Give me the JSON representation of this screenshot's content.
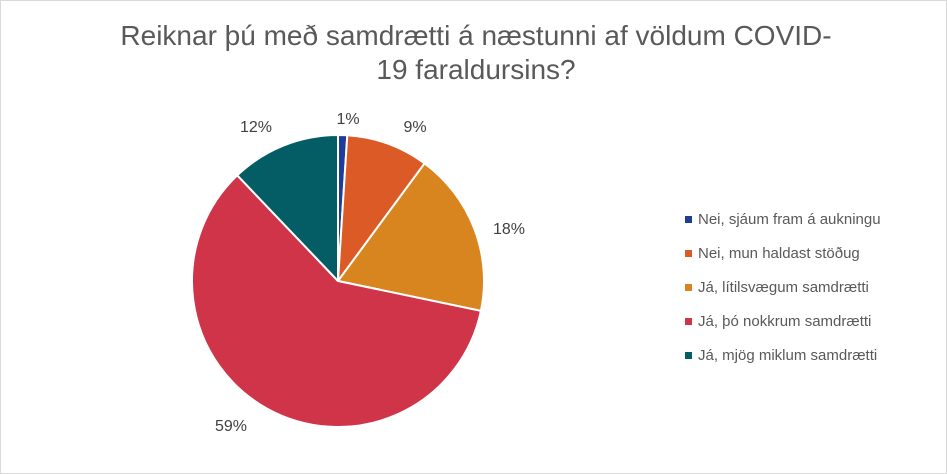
{
  "chart_data": {
    "type": "pie",
    "title_lines": [
      "Reiknar þú með samdrætti á næstunni af völdum COVID-",
      "19 faraldursins?"
    ],
    "legend_position": "right",
    "slices": [
      {
        "label": "Nei, sjáum fram á aukningu",
        "value": 1,
        "display": "1%",
        "color": "#1f3c99"
      },
      {
        "label": "Nei, mun haldast stöðug",
        "value": 9,
        "display": "9%",
        "color": "#dc5a25"
      },
      {
        "label": "Já, lítilsvægum samdrætti",
        "value": 18,
        "display": "18%",
        "color": "#d8851f"
      },
      {
        "label": "Já, þó nokkrum samdrætti",
        "value": 59,
        "display": "59%",
        "color": "#d03448"
      },
      {
        "label": "Já, mjög miklum samdrætti",
        "value": 12,
        "display": "12%",
        "color": "#045c64"
      }
    ]
  }
}
